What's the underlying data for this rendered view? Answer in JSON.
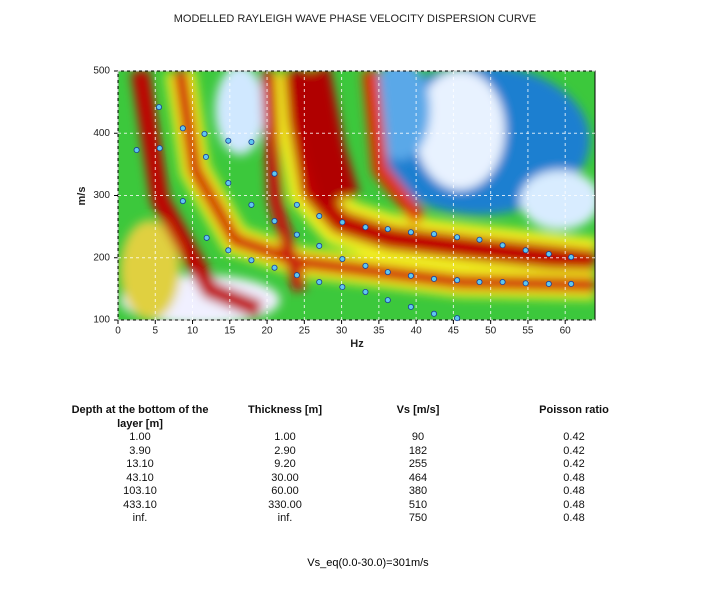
{
  "chart_data": {
    "type": "scatter",
    "title": "MODELLED RAYLEIGH WAVE PHASE VELOCITY DISPERSION CURVE",
    "xlabel": "Hz",
    "ylabel": "m/s",
    "x": [
      2.5,
      5.5,
      5.6,
      8.7,
      8.7,
      11.6,
      11.8,
      11.9,
      14.8,
      14.8,
      14.8,
      17.9,
      17.9,
      17.9,
      21,
      21,
      21,
      24,
      24,
      24,
      27,
      27,
      27,
      30.1,
      30.1,
      30.1,
      33.2,
      33.2,
      33.2,
      36.2,
      36.2,
      36.2,
      39.3,
      39.3,
      39.3,
      42.4,
      42.4,
      42.4,
      45.5,
      45.5,
      45.5,
      48.5,
      48.5,
      51.6,
      51.6,
      54.7,
      54.7,
      57.8,
      57.8,
      60.8,
      60.8
    ],
    "values": [
      373,
      442,
      376,
      408,
      291,
      399,
      362,
      232,
      388,
      320,
      212,
      386,
      285,
      196,
      335,
      259,
      184,
      285,
      237,
      172,
      267,
      219,
      161,
      257,
      198,
      153,
      249,
      187,
      145,
      246,
      177,
      132,
      241,
      171,
      121,
      238,
      166,
      110,
      233,
      164,
      103,
      229,
      161,
      220,
      161,
      212,
      159,
      206,
      158,
      201,
      158
    ],
    "color": "#5ec8f0",
    "xlim": [
      0,
      64
    ],
    "ylim": [
      100,
      500
    ],
    "xticks": [
      0,
      5,
      10,
      15,
      20,
      25,
      30,
      35,
      40,
      45,
      50,
      55,
      60
    ],
    "yticks": [
      100,
      200,
      300,
      400,
      500
    ],
    "grid": true
  },
  "table": {
    "headers": [
      "Depth at the bottom of the layer [m]",
      "Thickness [m]",
      "Vs [m/s]",
      "Poisson ratio"
    ],
    "rows": [
      [
        "1.00",
        "1.00",
        "90",
        "0.42"
      ],
      [
        "3.90",
        "2.90",
        "182",
        "0.42"
      ],
      [
        "13.10",
        "9.20",
        "255",
        "0.42"
      ],
      [
        "43.10",
        "30.00",
        "464",
        "0.48"
      ],
      [
        "103.10",
        "60.00",
        "380",
        "0.48"
      ],
      [
        "433.10",
        "330.00",
        "510",
        "0.48"
      ],
      [
        "inf.",
        "inf.",
        "750",
        "0.48"
      ]
    ]
  },
  "footer": "Vs_eq(0.0-30.0)=301m/s"
}
